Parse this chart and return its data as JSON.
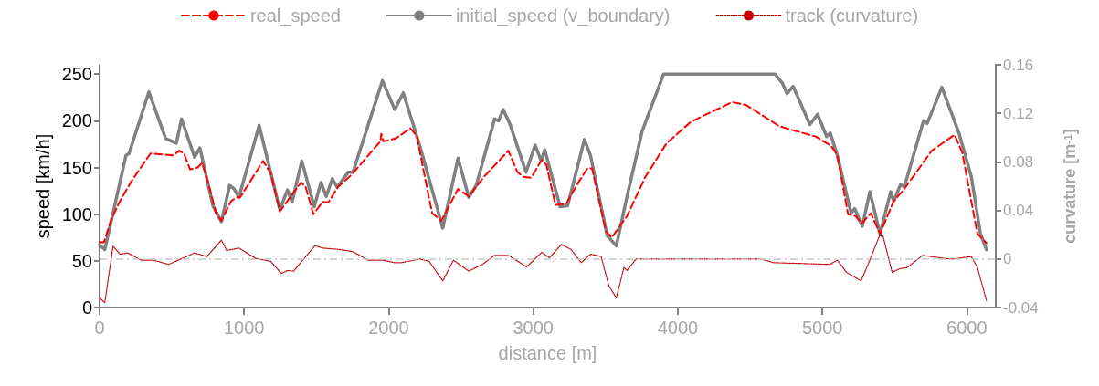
{
  "chart_data": {
    "type": "line",
    "xlabel": "distance [m]",
    "ylabel": "speed [km/h]",
    "y2label": "curvature [m$^{-1}$]",
    "xlim": [
      0,
      6200
    ],
    "xticks": [
      0,
      1000,
      2000,
      3000,
      4000,
      5000,
      6000
    ],
    "ylim": [
      0,
      260
    ],
    "yticks": [
      0,
      50,
      100,
      150,
      200,
      250
    ],
    "y2lim": [
      -0.04,
      0.16
    ],
    "y2ticks": [
      -0.04,
      0,
      0.04,
      0.08,
      0.12,
      0.16
    ],
    "legend": "top",
    "grid": false,
    "marker": "none",
    "ref_lines": [
      {
        "axis": "y2",
        "value": 0,
        "label": null,
        "color": "#c8c8c8",
        "line_style": "dashed"
      }
    ],
    "series": [
      {
        "name": "real_speed",
        "color": "#ff0000",
        "line_style": "dashed",
        "x": [
          0,
          30,
          78,
          131,
          215,
          352,
          510,
          552,
          584,
          626,
          679,
          710,
          763,
          805,
          843,
          910,
          948,
          973,
          1131,
          1184,
          1247,
          1332,
          1395,
          1426,
          1479,
          1542,
          1585,
          1648,
          1742,
          1943,
          1949,
          1964,
          2048,
          2150,
          2195,
          2237,
          2301,
          2364,
          2480,
          2554,
          2659,
          2828,
          2891,
          2933,
          2985,
          3059,
          3091,
          3154,
          3228,
          3312,
          3375,
          3407,
          3502,
          3544,
          3649,
          3776,
          3923,
          4092,
          4240,
          4377,
          4472,
          4704,
          4956,
          5062,
          5104,
          5178,
          5230,
          5272,
          5336,
          5399,
          5494,
          5567,
          5757,
          5915,
          5968,
          6073,
          6136
        ],
        "values": [
          70,
          70,
          93,
          111,
          134,
          165,
          163,
          168,
          165,
          148,
          150,
          155,
          127,
          101,
          93,
          114,
          118,
          118,
          157,
          144,
          103,
          121,
          134,
          129,
          100,
          113,
          113,
          129,
          142,
          178,
          186,
          178,
          181,
          192,
          184,
          150,
          101,
          93,
          127,
          119,
          140,
          168,
          145,
          140,
          139,
          158,
          153,
          110,
          111,
          134,
          149,
          149,
          82,
          75,
          98,
          140,
          176,
          199,
          210,
          220,
          217,
          194,
          183,
          173,
          163,
          100,
          98,
          90,
          101,
          79,
          114,
          127,
          168,
          185,
          166,
          79,
          69
        ]
      },
      {
        "name": "initial_speed (v_boundary)",
        "color": "#808080",
        "line_style": "solid",
        "x": [
          0,
          36,
          183,
          204,
          341,
          457,
          531,
          567,
          657,
          694,
          784,
          843,
          900,
          931,
          964,
          1104,
          1247,
          1300,
          1332,
          1399,
          1485,
          1532,
          1568,
          1610,
          1644,
          1721,
          1753,
          1957,
          2042,
          2101,
          2216,
          2374,
          2480,
          2554,
          2606,
          2733,
          2760,
          2792,
          2838,
          2950,
          3013,
          3055,
          3080,
          3186,
          3238,
          3354,
          3396,
          3512,
          3575,
          3649,
          3754,
          3902,
          4672,
          4725,
          4756,
          4798,
          4914,
          4967,
          5030,
          5055,
          5104,
          5199,
          5224,
          5277,
          5329,
          5399,
          5473,
          5494,
          5542,
          5567,
          5700,
          5725,
          5827,
          5947,
          6031,
          6094,
          6136
        ],
        "values": [
          67,
          62,
          163,
          165,
          231,
          181,
          176,
          202,
          161,
          171,
          109,
          92,
          131,
          127,
          118,
          195,
          105,
          126,
          113,
          157,
          108,
          134,
          119,
          138,
          129,
          145,
          145,
          243,
          212,
          230,
          173,
          85,
          160,
          118,
          131,
          202,
          200,
          212,
          197,
          145,
          174,
          157,
          169,
          108,
          109,
          180,
          163,
          77,
          66,
          119,
          189,
          250,
          250,
          240,
          229,
          237,
          196,
          207,
          183,
          187,
          163,
          101,
          106,
          87,
          124,
          79,
          124,
          114,
          132,
          129,
          200,
          197,
          236,
          186,
          140,
          79,
          62
        ]
      },
      {
        "name": "track (curvature)",
        "color": "#c00000",
        "line_style": "dotted",
        "axis": "y2",
        "x": [
          0,
          36,
          93,
          141,
          194,
          289,
          373,
          478,
          573,
          657,
          742,
          843,
          879,
          964,
          1079,
          1184,
          1258,
          1300,
          1342,
          1490,
          1542,
          1648,
          1753,
          1858,
          1964,
          2038,
          2090,
          2216,
          2280,
          2374,
          2448,
          2554,
          2648,
          2733,
          2828,
          2954,
          3059,
          3112,
          3196,
          3260,
          3333,
          3396,
          3470,
          3523,
          3575,
          3628,
          3649,
          3712,
          4577,
          4661,
          4935,
          5051,
          5104,
          5167,
          5268,
          5325,
          5395,
          5420,
          5483,
          5536,
          5588,
          5694,
          5841,
          5904,
          6031,
          6073,
          6136
        ],
        "values": [
          -0.032,
          -0.036,
          0.0105,
          0.004,
          0.005,
          -0.001,
          -0.001,
          -0.0045,
          0.0005,
          0.005,
          0.002,
          0.0155,
          0.007,
          0.009,
          0.0005,
          -0.002,
          -0.012,
          -0.0095,
          -0.01,
          0.011,
          0.009,
          0.008,
          0.006,
          -0.001,
          -0.001,
          -0.003,
          -0.003,
          0,
          -0.002,
          -0.018,
          -0.001,
          -0.01,
          -0.0045,
          0.003,
          0.003,
          -0.0065,
          0.0055,
          0.001,
          0.012,
          0.008,
          -0.003,
          0.004,
          0.002,
          -0.022,
          -0.032,
          -0.007,
          -0.0095,
          0,
          0,
          -0.003,
          -0.004,
          -0.0045,
          -0.001,
          -0.011,
          -0.018,
          -0.002,
          0.019,
          0.019,
          -0.011,
          -0.008,
          -0.007,
          0.003,
          0.0005,
          0,
          0.002,
          -0.007,
          -0.0345
        ]
      }
    ]
  }
}
